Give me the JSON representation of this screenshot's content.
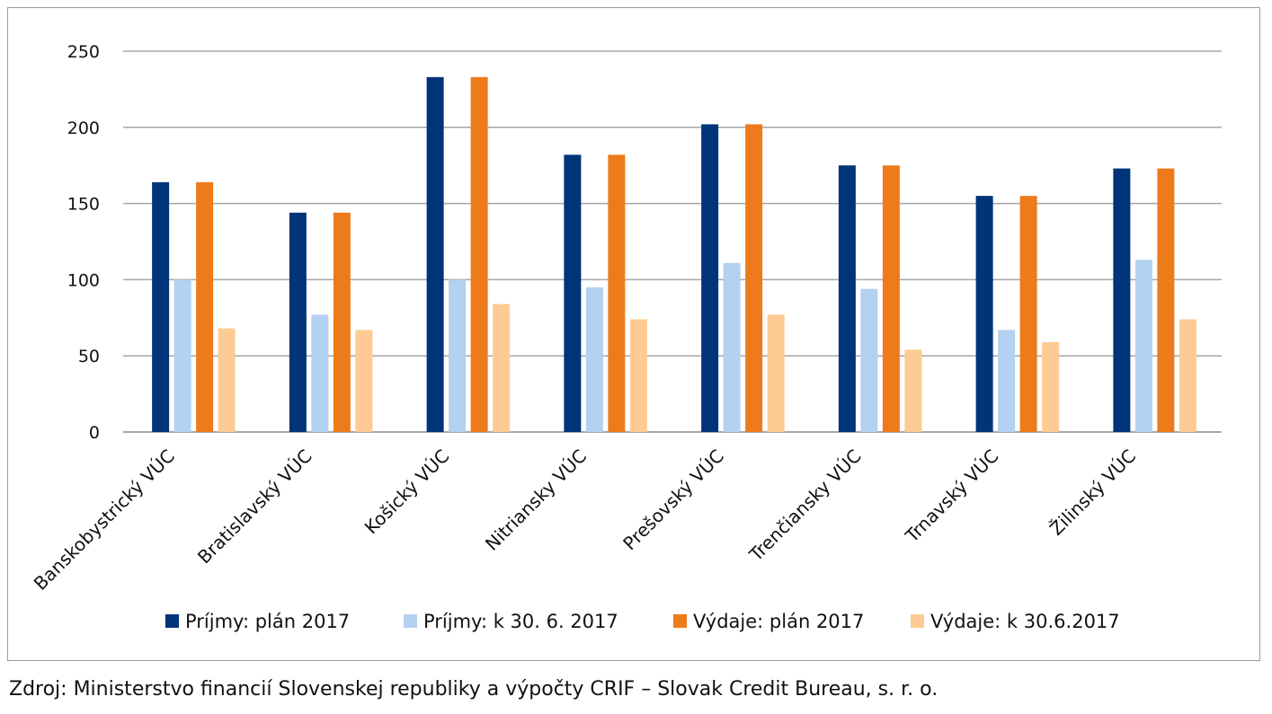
{
  "chart_data": {
    "type": "bar",
    "categories": [
      "Banskobystrický VÚC",
      "Bratislavský VÚC",
      "Košický VÚC",
      "Nitriansky VÚC",
      "Prešovský VÚC",
      "Trenčiansky VÚC",
      "Trnavský VÚC",
      "Žilinský VÚC"
    ],
    "series": [
      {
        "name": "Príjmy: plán 2017",
        "color": "#003478",
        "values": [
          164,
          144,
          233,
          182,
          202,
          175,
          155,
          173
        ]
      },
      {
        "name": "Príjmy: k 30. 6. 2017",
        "color": "#b3d1f1",
        "values": [
          100,
          77,
          100,
          95,
          111,
          94,
          67,
          113
        ]
      },
      {
        "name": "Výdaje: plán 2017",
        "color": "#ee7b1a",
        "values": [
          164,
          144,
          233,
          182,
          202,
          175,
          155,
          173
        ]
      },
      {
        "name": "Výdaje: k 30.6.2017",
        "color": "#fdcb93",
        "values": [
          68,
          67,
          84,
          74,
          77,
          54,
          59,
          74
        ]
      }
    ],
    "yticks": [
      0,
      50,
      100,
      150,
      200,
      250
    ],
    "ylim": [
      0,
      250
    ],
    "grid": true,
    "legend_position": "bottom",
    "title": "",
    "xlabel": "",
    "ylabel": ""
  },
  "source_note": "Zdroj: Ministerstvo financií Slovenskej republiky a výpočty CRIF – Slovak Credit Bureau, s. r. o."
}
